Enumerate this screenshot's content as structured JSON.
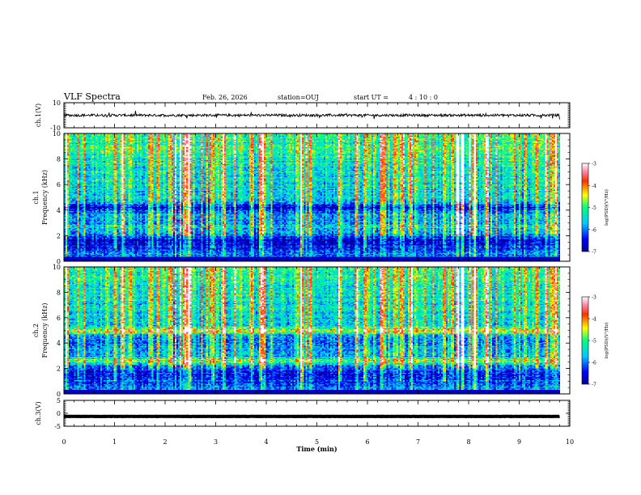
{
  "header": {
    "title": "VLF Spectra",
    "date": "Feb. 26, 2026",
    "station": "station=OUJ",
    "start_label": "start  UT =",
    "start_time": "4 : 10 : 0"
  },
  "chart_data": [
    {
      "type": "line",
      "name": "ch1-waveform",
      "ylabel": "ch.1(V)",
      "ylim": [
        -10,
        10
      ],
      "yticks": [
        "10",
        "-10"
      ],
      "trace_level": 0,
      "noise_amplitude": 1.0
    },
    {
      "type": "heatmap",
      "name": "ch1-spectrogram",
      "ylabel_line1": "ch.1",
      "ylabel_line2": "Frequency  (kHz)",
      "ylim": [
        0,
        10
      ],
      "yticks": [
        "0",
        "2",
        "4",
        "6",
        "8",
        "10"
      ],
      "bands_khz": [
        {
          "freq": 5.2,
          "width": 0.6,
          "level": -5.5
        },
        {
          "freq": 2.6,
          "width": 0.5,
          "level": -5.6
        },
        {
          "freq": 4.2,
          "width": 0.5,
          "level": -6.8
        },
        {
          "freq": 1.5,
          "width": 0.8,
          "level": -6.8
        }
      ],
      "colorbar": {
        "label": "log(PSD)(V²/Hz)",
        "range": [
          -7,
          -3
        ],
        "ticks": [
          "-3",
          "-4",
          "-5",
          "-6",
          "-7"
        ]
      }
    },
    {
      "type": "heatmap",
      "name": "ch2-spectrogram",
      "ylabel_line1": "ch.2",
      "ylabel_line2": "Frequency  (kHz)",
      "ylim": [
        0,
        10
      ],
      "yticks": [
        "0",
        "2",
        "4",
        "6",
        "8",
        "10"
      ],
      "bands_khz": [
        {
          "freq": 5.0,
          "width": 0.4,
          "level": -4.4
        },
        {
          "freq": 2.6,
          "width": 0.4,
          "level": -4.8
        },
        {
          "freq": 4.2,
          "width": 0.6,
          "level": -6.2
        },
        {
          "freq": 1.5,
          "width": 0.8,
          "level": -6.6
        }
      ],
      "colorbar": {
        "label": "log(PSD)(V²/Hz)",
        "range": [
          -7,
          -3
        ],
        "ticks": [
          "-3",
          "-4",
          "-5",
          "-6",
          "-7"
        ]
      }
    },
    {
      "type": "line",
      "name": "ch3-waveform",
      "ylabel": "ch.3(V)",
      "ylim": [
        -5,
        5
      ],
      "yticks": [
        "5",
        "0",
        "-5"
      ],
      "trace_level": -1.2,
      "noise_amplitude": 0.05
    }
  ],
  "x_axis": {
    "label": "Time  (min)",
    "xlim": [
      0,
      10
    ],
    "ticks": [
      "0",
      "1",
      "2",
      "3",
      "4",
      "5",
      "6",
      "7",
      "8",
      "9",
      "10"
    ],
    "data_end_min": 9.8
  }
}
